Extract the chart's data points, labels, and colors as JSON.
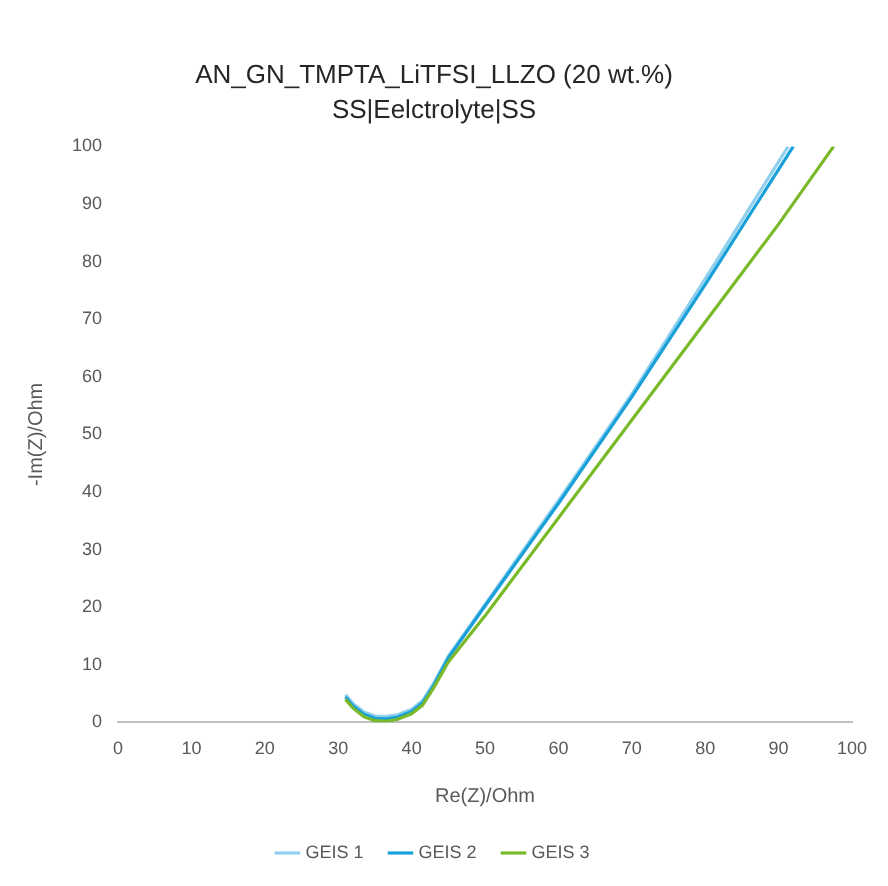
{
  "chart_data": {
    "type": "line",
    "title": "AN_GN_TMPTA_LiTFSI_LLZO (20 wt.%)",
    "subtitle": "SS|Eelctrolyte|SS",
    "xlabel": "Re(Z)/Ohm",
    "ylabel": "-Im(Z)/Ohm",
    "xlim": [
      0,
      100
    ],
    "xticks": [
      0,
      10,
      20,
      30,
      40,
      50,
      60,
      70,
      80,
      90,
      100
    ],
    "ylim": [
      0,
      100
    ],
    "yticks": [
      0,
      10,
      20,
      30,
      40,
      50,
      60,
      70,
      80,
      90,
      100
    ],
    "grid": false,
    "legend": "bottom",
    "marker": "none",
    "series": [
      {
        "name": "GEIS 1",
        "color": "#8fd0ef",
        "x": [
          31,
          32,
          33.5,
          35,
          36.5,
          38,
          40,
          41.5,
          43,
          45,
          50,
          60,
          70,
          80,
          91.3
        ],
        "values": [
          4.8,
          3.3,
          1.8,
          1.1,
          1,
          1.3,
          2.3,
          3.8,
          6.8,
          11.5,
          20.5,
          38.5,
          57,
          77,
          100
        ]
      },
      {
        "name": "GEIS 2",
        "color": "#1aa0d8",
        "x": [
          31,
          32,
          33.5,
          35,
          36.5,
          38,
          40,
          41.5,
          43,
          45,
          50,
          60,
          70,
          80,
          92
        ],
        "values": [
          4.4,
          2.9,
          1.4,
          0.7,
          0.6,
          0.9,
          1.9,
          3.4,
          6.4,
          11.2,
          20.2,
          38,
          56.5,
          76,
          100
        ]
      },
      {
        "name": "GEIS 3",
        "color": "#7ab929",
        "x": [
          31,
          32,
          33.5,
          35,
          36.5,
          38,
          40,
          41.5,
          43,
          45,
          50,
          60,
          70,
          80,
          90,
          97.5
        ],
        "values": [
          4,
          2.5,
          1,
          0.3,
          0.2,
          0.5,
          1.5,
          3,
          6,
          10.5,
          18.5,
          35.5,
          52.5,
          69.5,
          86.5,
          100
        ]
      }
    ]
  }
}
